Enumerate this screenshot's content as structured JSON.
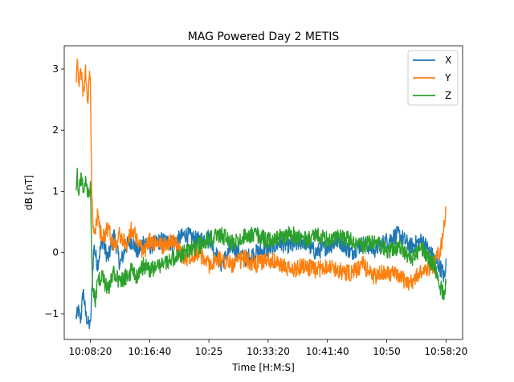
{
  "chart_data": {
    "type": "line",
    "title": "MAG Powered Day 2 METIS",
    "xlabel": "Time [H:M:S]",
    "ylabel": "dB [nT]",
    "x_ticks": [
      {
        "t": 0,
        "label": "10:08:20"
      },
      {
        "t": 500,
        "label": "10:16:40"
      },
      {
        "t": 1000,
        "label": "10:25"
      },
      {
        "t": 1500,
        "label": "10:33:20"
      },
      {
        "t": 2000,
        "label": "10:41:40"
      },
      {
        "t": 2500,
        "label": "10:50"
      },
      {
        "t": 3000,
        "label": "10:58:20"
      }
    ],
    "y_ticks": [
      {
        "v": -1,
        "label": "−1"
      },
      {
        "v": 0,
        "label": "0"
      },
      {
        "v": 1,
        "label": "1"
      },
      {
        "v": 2,
        "label": "2"
      },
      {
        "v": 3,
        "label": "3"
      }
    ],
    "xlim": [
      -220,
      3140
    ],
    "ylim": [
      -1.42,
      3.38
    ],
    "legend_position": "top-right",
    "grid": false,
    "series": [
      {
        "name": "X",
        "color": "#1f77b4",
        "points": [
          [
            -120,
            -1.05
          ],
          [
            -100,
            -0.95
          ],
          [
            -80,
            -1.1
          ],
          [
            -60,
            -0.6
          ],
          [
            -40,
            -1.0
          ],
          [
            -20,
            -1.15
          ],
          [
            0,
            -1.2
          ],
          [
            10,
            -0.8
          ],
          [
            20,
            -0.3
          ],
          [
            30,
            0.1
          ],
          [
            60,
            -0.2
          ],
          [
            100,
            0.2
          ],
          [
            150,
            -0.1
          ],
          [
            200,
            0.3
          ],
          [
            250,
            -0.2
          ],
          [
            300,
            0.1
          ],
          [
            350,
            0.2
          ],
          [
            400,
            0.0
          ],
          [
            450,
            0.2
          ],
          [
            500,
            0.1
          ],
          [
            600,
            0.2
          ],
          [
            700,
            0.15
          ],
          [
            800,
            0.3
          ],
          [
            900,
            0.2
          ],
          [
            1000,
            0.25
          ],
          [
            1100,
            -0.2
          ],
          [
            1200,
            0.1
          ],
          [
            1300,
            -0.1
          ],
          [
            1400,
            0.0
          ],
          [
            1500,
            0.05
          ],
          [
            1600,
            0.15
          ],
          [
            1700,
            0.1
          ],
          [
            1800,
            0.2
          ],
          [
            1900,
            0.0
          ],
          [
            2000,
            0.1
          ],
          [
            2100,
            0.2
          ],
          [
            2200,
            0.0
          ],
          [
            2300,
            0.15
          ],
          [
            2400,
            0.05
          ],
          [
            2500,
            0.2
          ],
          [
            2600,
            0.3
          ],
          [
            2700,
            0.1
          ],
          [
            2800,
            0.2
          ],
          [
            2900,
            -0.1
          ],
          [
            2970,
            -0.3
          ],
          [
            2990,
            -0.45
          ],
          [
            3000,
            -0.1
          ]
        ]
      },
      {
        "name": "Y",
        "color": "#ff7f0e",
        "points": [
          [
            -120,
            2.9
          ],
          [
            -110,
            3.1
          ],
          [
            -100,
            2.7
          ],
          [
            -80,
            3.0
          ],
          [
            -60,
            2.6
          ],
          [
            -40,
            2.95
          ],
          [
            -20,
            2.4
          ],
          [
            -10,
            2.9
          ],
          [
            0,
            2.8
          ],
          [
            10,
            1.2
          ],
          [
            20,
            0.5
          ],
          [
            40,
            0.3
          ],
          [
            60,
            0.6
          ],
          [
            100,
            0.2
          ],
          [
            150,
            0.4
          ],
          [
            200,
            0.1
          ],
          [
            250,
            0.3
          ],
          [
            300,
            0.1
          ],
          [
            350,
            0.4
          ],
          [
            400,
            0.2
          ],
          [
            450,
            0.0
          ],
          [
            500,
            0.2
          ],
          [
            600,
            0.1
          ],
          [
            700,
            0.2
          ],
          [
            800,
            -0.1
          ],
          [
            900,
            0.0
          ],
          [
            1000,
            -0.2
          ],
          [
            1100,
            -0.1
          ],
          [
            1200,
            -0.2
          ],
          [
            1300,
            -0.1
          ],
          [
            1400,
            -0.2
          ],
          [
            1500,
            -0.1
          ],
          [
            1600,
            -0.2
          ],
          [
            1700,
            -0.3
          ],
          [
            1800,
            -0.2
          ],
          [
            1900,
            -0.3
          ],
          [
            2000,
            -0.2
          ],
          [
            2100,
            -0.3
          ],
          [
            2200,
            -0.35
          ],
          [
            2300,
            -0.2
          ],
          [
            2400,
            -0.4
          ],
          [
            2500,
            -0.3
          ],
          [
            2600,
            -0.4
          ],
          [
            2700,
            -0.5
          ],
          [
            2800,
            -0.3
          ],
          [
            2900,
            -0.2
          ],
          [
            2960,
            0.1
          ],
          [
            2980,
            0.4
          ],
          [
            3000,
            0.7
          ]
        ]
      },
      {
        "name": "Z",
        "color": "#2ca02c",
        "points": [
          [
            -120,
            1.05
          ],
          [
            -110,
            1.3
          ],
          [
            -100,
            0.9
          ],
          [
            -80,
            1.25
          ],
          [
            -60,
            1.0
          ],
          [
            -40,
            1.2
          ],
          [
            -20,
            0.95
          ],
          [
            0,
            1.1
          ],
          [
            10,
            0.0
          ],
          [
            20,
            -0.6
          ],
          [
            40,
            -0.8
          ],
          [
            60,
            -0.5
          ],
          [
            100,
            -0.4
          ],
          [
            150,
            -0.6
          ],
          [
            200,
            -0.3
          ],
          [
            250,
            -0.5
          ],
          [
            300,
            -0.4
          ],
          [
            350,
            -0.3
          ],
          [
            400,
            -0.4
          ],
          [
            450,
            -0.2
          ],
          [
            500,
            -0.3
          ],
          [
            600,
            -0.2
          ],
          [
            700,
            -0.1
          ],
          [
            800,
            0.0
          ],
          [
            900,
            0.1
          ],
          [
            1000,
            0.2
          ],
          [
            1100,
            0.3
          ],
          [
            1200,
            0.15
          ],
          [
            1300,
            0.25
          ],
          [
            1400,
            0.3
          ],
          [
            1500,
            0.2
          ],
          [
            1600,
            0.25
          ],
          [
            1700,
            0.3
          ],
          [
            1800,
            0.2
          ],
          [
            1900,
            0.3
          ],
          [
            2000,
            0.2
          ],
          [
            2100,
            0.25
          ],
          [
            2200,
            0.2
          ],
          [
            2300,
            0.1
          ],
          [
            2400,
            0.2
          ],
          [
            2500,
            0.0
          ],
          [
            2600,
            0.1
          ],
          [
            2700,
            -0.1
          ],
          [
            2800,
            0.05
          ],
          [
            2900,
            -0.2
          ],
          [
            2960,
            -0.6
          ],
          [
            2980,
            -0.7
          ],
          [
            3000,
            -0.5
          ]
        ]
      }
    ]
  }
}
